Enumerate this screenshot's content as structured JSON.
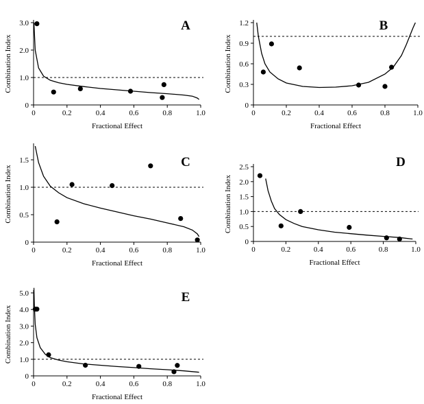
{
  "chart_data": [
    {
      "type": "scatter",
      "panel": "A",
      "xlabel": "Fractional Effect",
      "ylabel": "Combination Index",
      "xlim": [
        0,
        1.0
      ],
      "ylim": [
        0,
        3.0
      ],
      "xticks": [
        0,
        0.2,
        0.4,
        0.6,
        0.8,
        1.0
      ],
      "xtick_labels": [
        "0",
        "0.2",
        "0.4",
        "0.6",
        "0.8",
        "1.0"
      ],
      "yticks": [
        0,
        1.0,
        2.0,
        3.0
      ],
      "ytick_labels": [
        "0",
        "1.0",
        "2.0",
        "3.0"
      ],
      "reference_line": 1.0,
      "points": [
        {
          "x": 0.02,
          "y": 2.96
        },
        {
          "x": 0.12,
          "y": 0.47
        },
        {
          "x": 0.28,
          "y": 0.59
        },
        {
          "x": 0.58,
          "y": 0.5
        },
        {
          "x": 0.77,
          "y": 0.27
        },
        {
          "x": 0.78,
          "y": 0.74
        }
      ],
      "curve": {
        "x": [
          0.002,
          0.01,
          0.03,
          0.06,
          0.1,
          0.15,
          0.2,
          0.3,
          0.4,
          0.5,
          0.6,
          0.7,
          0.8,
          0.9,
          0.95,
          0.98,
          0.99
        ],
        "y": [
          3.0,
          2.0,
          1.35,
          1.05,
          0.9,
          0.81,
          0.75,
          0.67,
          0.6,
          0.55,
          0.5,
          0.45,
          0.41,
          0.36,
          0.32,
          0.25,
          0.2
        ]
      }
    },
    {
      "type": "scatter",
      "panel": "B",
      "xlabel": "Fractional Effect",
      "ylabel": "Combination Index",
      "xlim": [
        0,
        1.0
      ],
      "ylim": [
        0,
        1.2
      ],
      "xticks": [
        0,
        0.2,
        0.4,
        0.6,
        0.8,
        1.0
      ],
      "xtick_labels": [
        "0",
        "0.2",
        "0.4",
        "0.6",
        "0.8",
        "1.0"
      ],
      "yticks": [
        0,
        0.3,
        0.6,
        0.9,
        1.2
      ],
      "ytick_labels": [
        "0",
        "0.3",
        "0.6",
        "0.9",
        "1.2"
      ],
      "reference_line": 1.0,
      "points": [
        {
          "x": 0.06,
          "y": 0.48
        },
        {
          "x": 0.11,
          "y": 0.89
        },
        {
          "x": 0.28,
          "y": 0.54
        },
        {
          "x": 0.64,
          "y": 0.29
        },
        {
          "x": 0.8,
          "y": 0.27
        },
        {
          "x": 0.84,
          "y": 0.55
        }
      ],
      "curve": {
        "x": [
          0.02,
          0.03,
          0.05,
          0.07,
          0.1,
          0.15,
          0.2,
          0.3,
          0.4,
          0.5,
          0.6,
          0.7,
          0.8,
          0.85,
          0.9,
          0.93,
          0.95,
          0.97,
          0.985
        ],
        "y": [
          1.2,
          1.0,
          0.75,
          0.6,
          0.48,
          0.38,
          0.32,
          0.27,
          0.255,
          0.26,
          0.28,
          0.33,
          0.45,
          0.55,
          0.72,
          0.88,
          1.0,
          1.12,
          1.2
        ]
      }
    },
    {
      "type": "scatter",
      "panel": "C",
      "xlabel": "Fractional Effect",
      "ylabel": "Combination Index",
      "xlim": [
        0,
        1.0
      ],
      "ylim": [
        0,
        1.75
      ],
      "xticks": [
        0,
        0.2,
        0.4,
        0.6,
        0.8,
        1.0
      ],
      "xtick_labels": [
        "0",
        "0.2",
        "0.4",
        "0.6",
        "0.8",
        "1.0"
      ],
      "yticks": [
        0,
        0.5,
        1.0,
        1.5
      ],
      "ytick_labels": [
        "0",
        "0.5",
        "1.0",
        "1.5"
      ],
      "reference_line": 1.0,
      "points": [
        {
          "x": 0.14,
          "y": 0.37
        },
        {
          "x": 0.23,
          "y": 1.05
        },
        {
          "x": 0.47,
          "y": 1.03
        },
        {
          "x": 0.7,
          "y": 1.39
        },
        {
          "x": 0.88,
          "y": 0.43
        },
        {
          "x": 0.98,
          "y": 0.04
        }
      ],
      "curve": {
        "x": [
          0.01,
          0.03,
          0.06,
          0.1,
          0.15,
          0.2,
          0.3,
          0.4,
          0.5,
          0.6,
          0.7,
          0.8,
          0.9,
          0.95,
          0.98,
          0.99
        ],
        "y": [
          1.75,
          1.45,
          1.2,
          1.02,
          0.9,
          0.81,
          0.7,
          0.62,
          0.55,
          0.48,
          0.42,
          0.35,
          0.28,
          0.22,
          0.15,
          0.1
        ]
      }
    },
    {
      "type": "scatter",
      "panel": "D",
      "xlabel": "Fractional Effect",
      "ylabel": "Combination Index",
      "xlim": [
        0,
        1.0
      ],
      "ylim": [
        0,
        2.5
      ],
      "xticks": [
        0,
        0.2,
        0.4,
        0.6,
        0.8,
        1.0
      ],
      "xtick_labels": [
        "0",
        "0.2",
        "0.4",
        "0.6",
        "0.8",
        "1.0"
      ],
      "yticks": [
        0,
        0.5,
        1.0,
        1.5,
        2.0,
        2.5
      ],
      "ytick_labels": [
        "0",
        "0.5",
        "1.0",
        "1.5",
        "2.0",
        "2.5"
      ],
      "reference_line": 1.0,
      "points": [
        {
          "x": 0.04,
          "y": 2.2
        },
        {
          "x": 0.17,
          "y": 0.52
        },
        {
          "x": 0.29,
          "y": 1.0
        },
        {
          "x": 0.59,
          "y": 0.47
        },
        {
          "x": 0.82,
          "y": 0.12
        },
        {
          "x": 0.9,
          "y": 0.08
        }
      ],
      "curve": {
        "x": [
          0.075,
          0.09,
          0.11,
          0.13,
          0.16,
          0.2,
          0.25,
          0.3,
          0.4,
          0.5,
          0.6,
          0.7,
          0.8,
          0.9,
          0.98
        ],
        "y": [
          2.1,
          1.7,
          1.35,
          1.1,
          0.9,
          0.73,
          0.6,
          0.5,
          0.39,
          0.31,
          0.26,
          0.21,
          0.17,
          0.13,
          0.08
        ]
      }
    },
    {
      "type": "scatter",
      "panel": "E",
      "xlabel": "Fractional Effect",
      "ylabel": "Combination Index",
      "xlim": [
        0,
        1.0
      ],
      "ylim": [
        0,
        5.0
      ],
      "xticks": [
        0,
        0.2,
        0.4,
        0.6,
        0.8,
        1.0
      ],
      "xtick_labels": [
        "0",
        "0.2",
        "0.4",
        "0.6",
        "0.8",
        "1.0"
      ],
      "yticks": [
        0,
        1.0,
        2.0,
        3.0,
        4.0,
        5.0
      ],
      "ytick_labels": [
        "0",
        "1.0",
        "2.0",
        "3.0",
        "4.0",
        "5.0"
      ],
      "reference_line": 1.0,
      "points": [
        {
          "x": 0.01,
          "y": 4.02
        },
        {
          "x": 0.02,
          "y": 4.02
        },
        {
          "x": 0.09,
          "y": 1.27
        },
        {
          "x": 0.31,
          "y": 0.64
        },
        {
          "x": 0.63,
          "y": 0.57
        },
        {
          "x": 0.84,
          "y": 0.25
        },
        {
          "x": 0.86,
          "y": 0.63
        }
      ],
      "curve": {
        "x": [
          0.002,
          0.005,
          0.01,
          0.02,
          0.04,
          0.07,
          0.1,
          0.15,
          0.2,
          0.3,
          0.4,
          0.5,
          0.6,
          0.7,
          0.8,
          0.9,
          0.99
        ],
        "y": [
          5.3,
          4.2,
          3.1,
          2.3,
          1.7,
          1.3,
          1.1,
          0.95,
          0.85,
          0.72,
          0.64,
          0.56,
          0.5,
          0.43,
          0.37,
          0.3,
          0.22
        ]
      }
    }
  ]
}
